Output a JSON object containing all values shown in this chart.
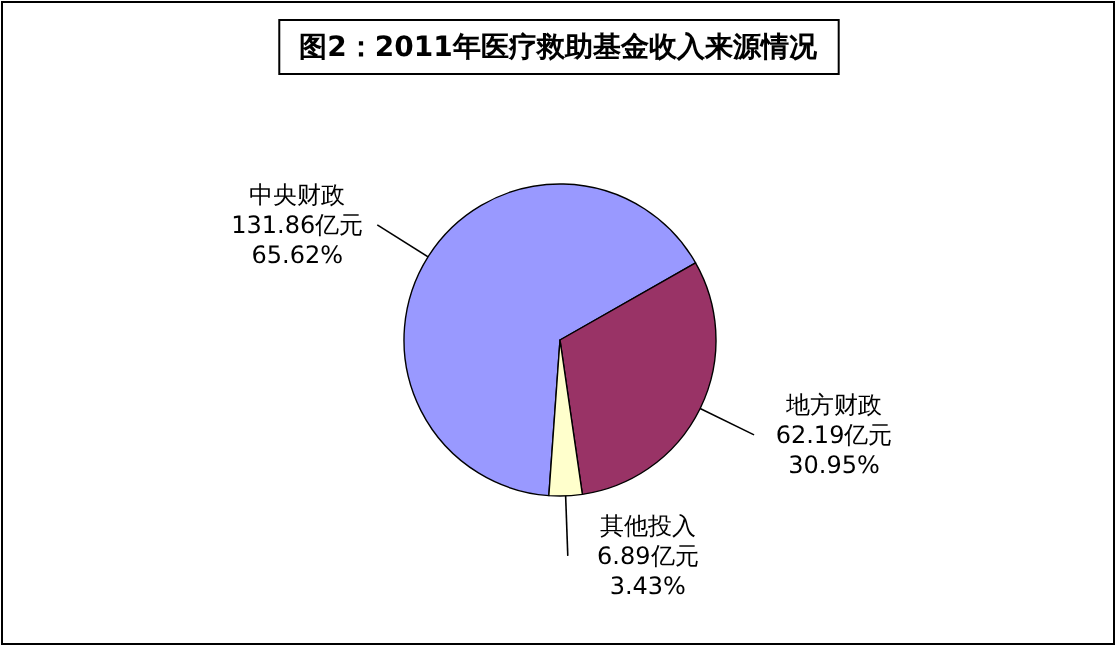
{
  "chart_data": {
    "type": "pie",
    "title": "图2：2011年医疗救助基金收入来源情况",
    "categories": [
      "中央财政",
      "地方财政",
      "其他投入"
    ],
    "values": [
      131.86,
      62.19,
      6.89
    ],
    "value_labels": [
      "131.86亿元\n65.62%",
      "62.19亿元\n30.95%",
      "6.89亿元\n3.43%"
    ],
    "colors": [
      "#9999ff",
      "#993366",
      "#ffffcc"
    ],
    "legend": false
  }
}
